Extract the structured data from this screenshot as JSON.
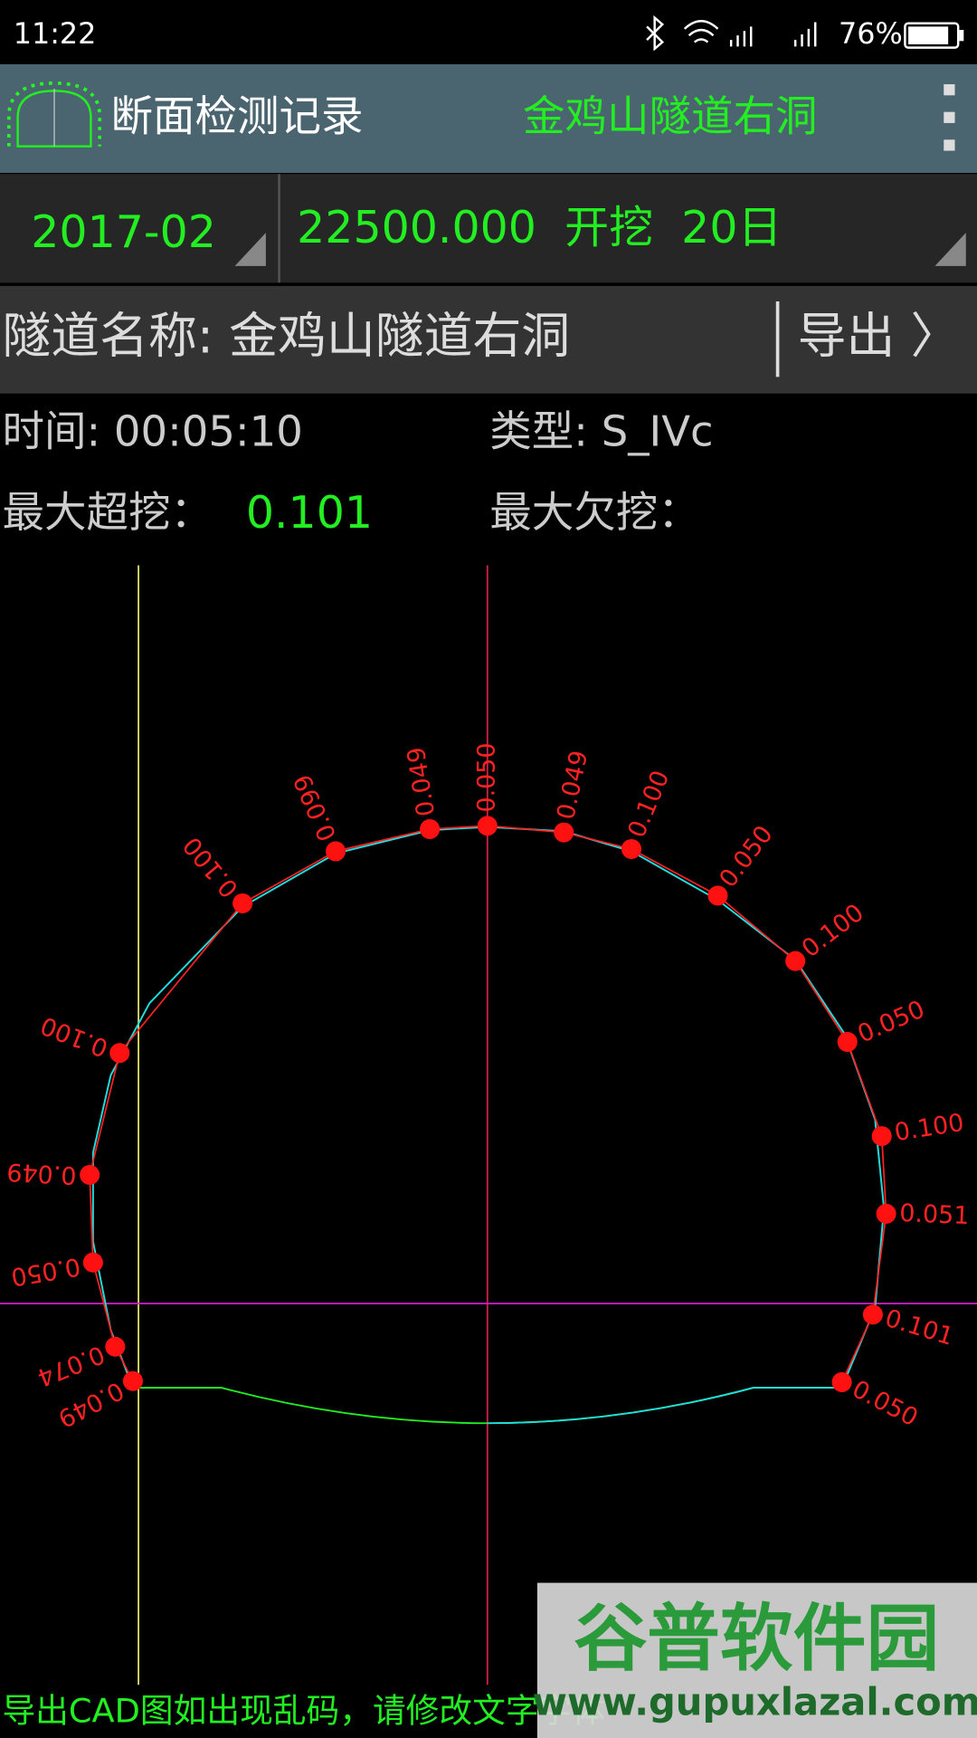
{
  "status_bar": {
    "time": "11:22",
    "battery": "76%"
  },
  "app_bar": {
    "title": "断面检测记录",
    "tunnel": "金鸡山隧道右洞"
  },
  "selectors": {
    "month": "2017-02",
    "section": "22500.000  开挖  20日"
  },
  "tunnel_row": {
    "label": "隧道名称: 金鸡山隧道右洞",
    "export": "导出 〉"
  },
  "info": {
    "time": "时间: 00:05:10",
    "type": "类型: S_IVc",
    "max_over_label": "最大超挖：",
    "max_over_value": "0.101",
    "max_under_label": "最大欠挖："
  },
  "profile": {
    "point_labels": [
      "0.049",
      "0.074",
      "0.050",
      "0.049",
      "0.100",
      "0.100",
      "0.099",
      "0.049",
      "0.050",
      "0.049",
      "0.100",
      "0.050",
      "0.100",
      "0.050",
      "0.100",
      "0.051",
      "0.101",
      "0.050"
    ]
  },
  "footer": "导出CAD图如出现乱码，请修改文字字体",
  "watermark": {
    "name": "谷普软件园",
    "url": "www.gupuxlazal.com"
  }
}
